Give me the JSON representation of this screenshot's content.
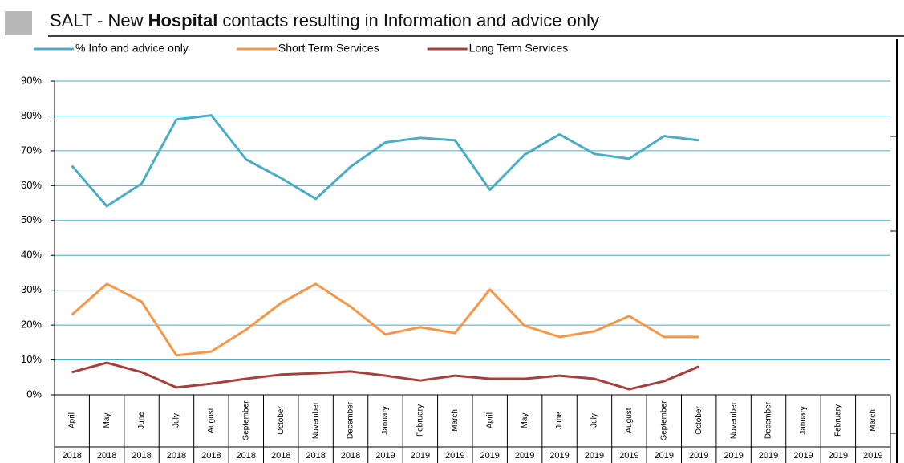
{
  "chart_data": {
    "type": "line",
    "title": [
      "SALT - New",
      "Hospital",
      "contacts resulting in Information and advice only"
    ],
    "title_bold_part": 1,
    "categories": [
      "April",
      "May",
      "June",
      "July",
      "August",
      "September",
      "October",
      "November",
      "December",
      "January",
      "February",
      "March",
      "April",
      "May",
      "June",
      "July",
      "August",
      "September",
      "October",
      "November",
      "December",
      "January",
      "February",
      "March"
    ],
    "category_years": [
      "2018",
      "2018",
      "2018",
      "2018",
      "2018",
      "2018",
      "2018",
      "2018",
      "2018",
      "2019",
      "2019",
      "2019",
      "2019",
      "2019",
      "2019",
      "2019",
      "2019",
      "2019",
      "2019",
      "2019",
      "2019",
      "2019",
      "2019",
      "2019"
    ],
    "series": [
      {
        "name": "% Info and advice only",
        "color": "#4bacc6",
        "values": [
          65.7,
          54.1,
          60.6,
          79.0,
          80.2,
          67.5,
          62.2,
          56.2,
          65.4,
          72.4,
          73.7,
          73.0,
          58.8,
          68.9,
          74.7,
          69.1,
          67.7,
          74.2,
          73.0,
          null,
          null,
          null,
          null,
          null
        ]
      },
      {
        "name": "Short Term Services",
        "color": "#f79646",
        "values": [
          23.0,
          31.8,
          26.7,
          11.3,
          12.4,
          18.7,
          26.3,
          31.8,
          25.3,
          17.3,
          19.4,
          17.7,
          30.2,
          19.8,
          16.6,
          18.2,
          22.6,
          16.6,
          16.6,
          null,
          null,
          null,
          null,
          null
        ]
      },
      {
        "name": "Long Term Services",
        "color": "#a5403d",
        "values": [
          6.5,
          9.2,
          6.5,
          2.1,
          3.2,
          4.6,
          5.8,
          6.2,
          6.7,
          5.5,
          4.1,
          5.5,
          4.6,
          4.6,
          5.5,
          4.6,
          1.6,
          3.9,
          8.1,
          null,
          null,
          null,
          null,
          null
        ]
      }
    ],
    "ylim": [
      0,
      90
    ],
    "yticks": [
      {
        "value": 0,
        "label": "0%"
      },
      {
        "value": 10,
        "label": "10%"
      },
      {
        "value": 20,
        "label": "20%"
      },
      {
        "value": 30,
        "label": "30%"
      },
      {
        "value": 40,
        "label": "40%"
      },
      {
        "value": 50,
        "label": "50%"
      },
      {
        "value": 60,
        "label": "60%"
      },
      {
        "value": 70,
        "label": "70%"
      },
      {
        "value": 80,
        "label": "80%"
      },
      {
        "value": 90,
        "label": "90%"
      }
    ],
    "grid": true,
    "legend": "top"
  }
}
